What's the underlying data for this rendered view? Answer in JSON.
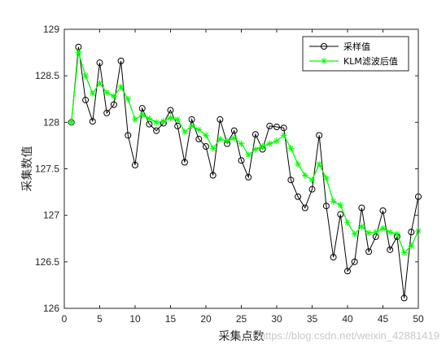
{
  "chart_data": {
    "type": "line",
    "title": "",
    "xlabel": "采集点数",
    "ylabel": "采集数值",
    "xlim": [
      0,
      50
    ],
    "ylim": [
      126,
      129
    ],
    "xticks": [
      0,
      5,
      10,
      15,
      20,
      25,
      30,
      35,
      40,
      45,
      50
    ],
    "yticks": [
      126,
      126.5,
      127,
      127.5,
      128,
      128.5,
      129
    ],
    "ytick_labels": [
      "126",
      "126.5",
      "127",
      "127.5",
      "128",
      "128.5",
      "129"
    ],
    "grid": false,
    "legend_position": "top-right",
    "x": [
      1,
      2,
      3,
      4,
      5,
      6,
      7,
      8,
      9,
      10,
      11,
      12,
      13,
      14,
      15,
      16,
      17,
      18,
      19,
      20,
      21,
      22,
      23,
      24,
      25,
      26,
      27,
      28,
      29,
      30,
      31,
      32,
      33,
      34,
      35,
      36,
      37,
      38,
      39,
      40,
      41,
      42,
      43,
      44,
      45,
      46,
      47,
      48,
      49,
      50
    ],
    "series": [
      {
        "name": "采样值",
        "color": "#000000",
        "marker": "circle",
        "values": [
          128.0,
          128.81,
          128.24,
          128.01,
          128.64,
          128.1,
          128.19,
          128.66,
          127.86,
          127.54,
          128.15,
          127.98,
          127.91,
          127.99,
          128.13,
          127.96,
          127.57,
          128.03,
          127.82,
          127.74,
          127.43,
          128.03,
          127.77,
          127.91,
          127.59,
          127.41,
          127.87,
          127.71,
          127.96,
          127.95,
          127.94,
          127.38,
          127.2,
          127.08,
          127.28,
          127.86,
          127.1,
          126.55,
          127.01,
          126.4,
          126.5,
          127.08,
          126.61,
          126.77,
          127.05,
          126.63,
          126.77,
          126.11,
          126.82,
          127.2
        ]
      },
      {
        "name": "KLM滤波后值",
        "color": "#00ff00",
        "marker": "asterisk",
        "values": [
          128.0,
          128.75,
          128.5,
          128.31,
          128.42,
          128.32,
          128.28,
          128.38,
          128.25,
          128.03,
          128.08,
          128.04,
          128.0,
          128.01,
          128.05,
          128.03,
          127.9,
          127.96,
          127.92,
          127.86,
          127.72,
          127.82,
          127.8,
          127.83,
          127.77,
          127.65,
          127.71,
          127.74,
          127.77,
          127.8,
          127.86,
          127.72,
          127.55,
          127.43,
          127.38,
          127.55,
          127.4,
          127.15,
          127.11,
          126.92,
          126.8,
          126.88,
          126.81,
          126.82,
          126.86,
          126.82,
          126.8,
          126.6,
          126.67,
          126.83
        ]
      }
    ]
  },
  "watermark": "https://blog.csdn.net/weixin_42881419"
}
